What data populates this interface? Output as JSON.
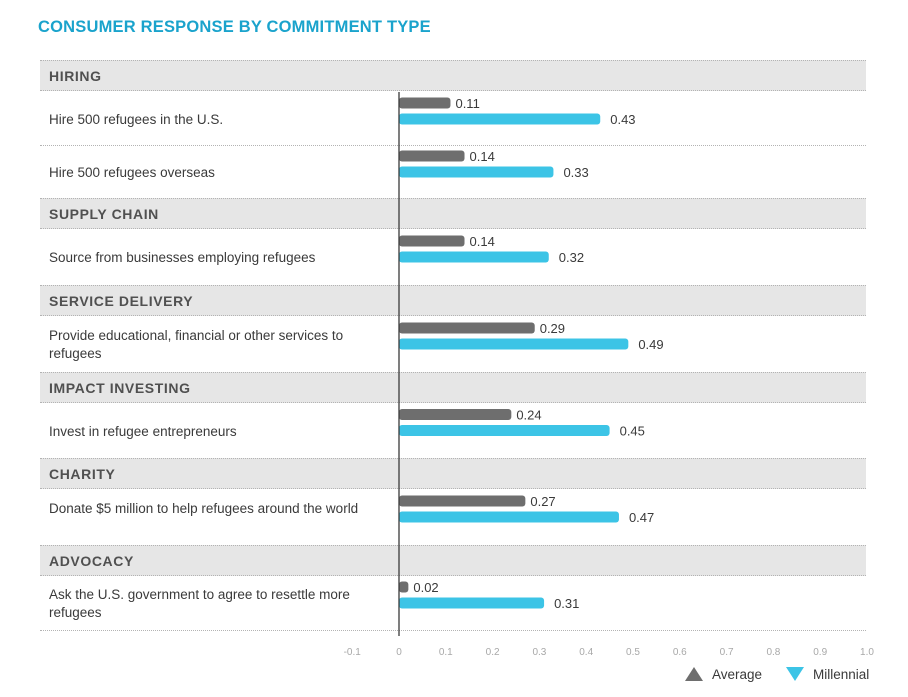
{
  "title": "CONSUMER RESPONSE BY COMMITMENT TYPE",
  "colors": {
    "average": "#6e6e6e",
    "millennial": "#3cc4e6",
    "title": "#1aa3cc",
    "band": "#e6e6e6"
  },
  "legend": {
    "average": "Average",
    "millennial": "Millennial"
  },
  "chart_data": {
    "type": "bar",
    "orientation": "horizontal",
    "title": "CONSUMER RESPONSE BY COMMITMENT TYPE",
    "xlim": [
      -0.1,
      1.0
    ],
    "xticks": [
      "-0.1",
      "0",
      "0.1",
      "0.2",
      "0.3",
      "0.4",
      "0.5",
      "0.6",
      "0.7",
      "0.8",
      "0.9",
      "1.0"
    ],
    "grid": false,
    "legend_position": "bottom-right",
    "groups": [
      {
        "name": "HIRING",
        "items": [
          {
            "label": "Hire 500 refugees in the U.S.",
            "average": 0.11,
            "millennial": 0.43,
            "average_label": "0.11",
            "millennial_label": "0.43"
          },
          {
            "label": "Hire 500 refugees overseas",
            "average": 0.14,
            "millennial": 0.33,
            "average_label": "0.14",
            "millennial_label": "0.33"
          }
        ]
      },
      {
        "name": "SUPPLY CHAIN",
        "items": [
          {
            "label": "Source from businesses employing refugees",
            "average": 0.14,
            "millennial": 0.32,
            "average_label": "0.14",
            "millennial_label": "0.32"
          }
        ]
      },
      {
        "name": "SERVICE DELIVERY",
        "items": [
          {
            "label": "Provide educational, financial or other services to refugees",
            "average": 0.29,
            "millennial": 0.49,
            "average_label": "0.29",
            "millennial_label": "0.49"
          }
        ]
      },
      {
        "name": "IMPACT INVESTING",
        "items": [
          {
            "label": "Invest in refugee entrepreneurs",
            "average": 0.24,
            "millennial": 0.45,
            "average_label": "0.24",
            "millennial_label": "0.45"
          }
        ]
      },
      {
        "name": "CHARITY",
        "items": [
          {
            "label": "Donate $5 million to help refugees around the world",
            "average": 0.27,
            "millennial": 0.47,
            "average_label": "0.27",
            "millennial_label": "0.47"
          }
        ]
      },
      {
        "name": "ADVOCACY",
        "items": [
          {
            "label": "Ask the U.S. government to agree to resettle more refugees",
            "average": 0.02,
            "millennial": 0.31,
            "average_label": "0.02",
            "millennial_label": "0.31"
          }
        ]
      }
    ]
  }
}
